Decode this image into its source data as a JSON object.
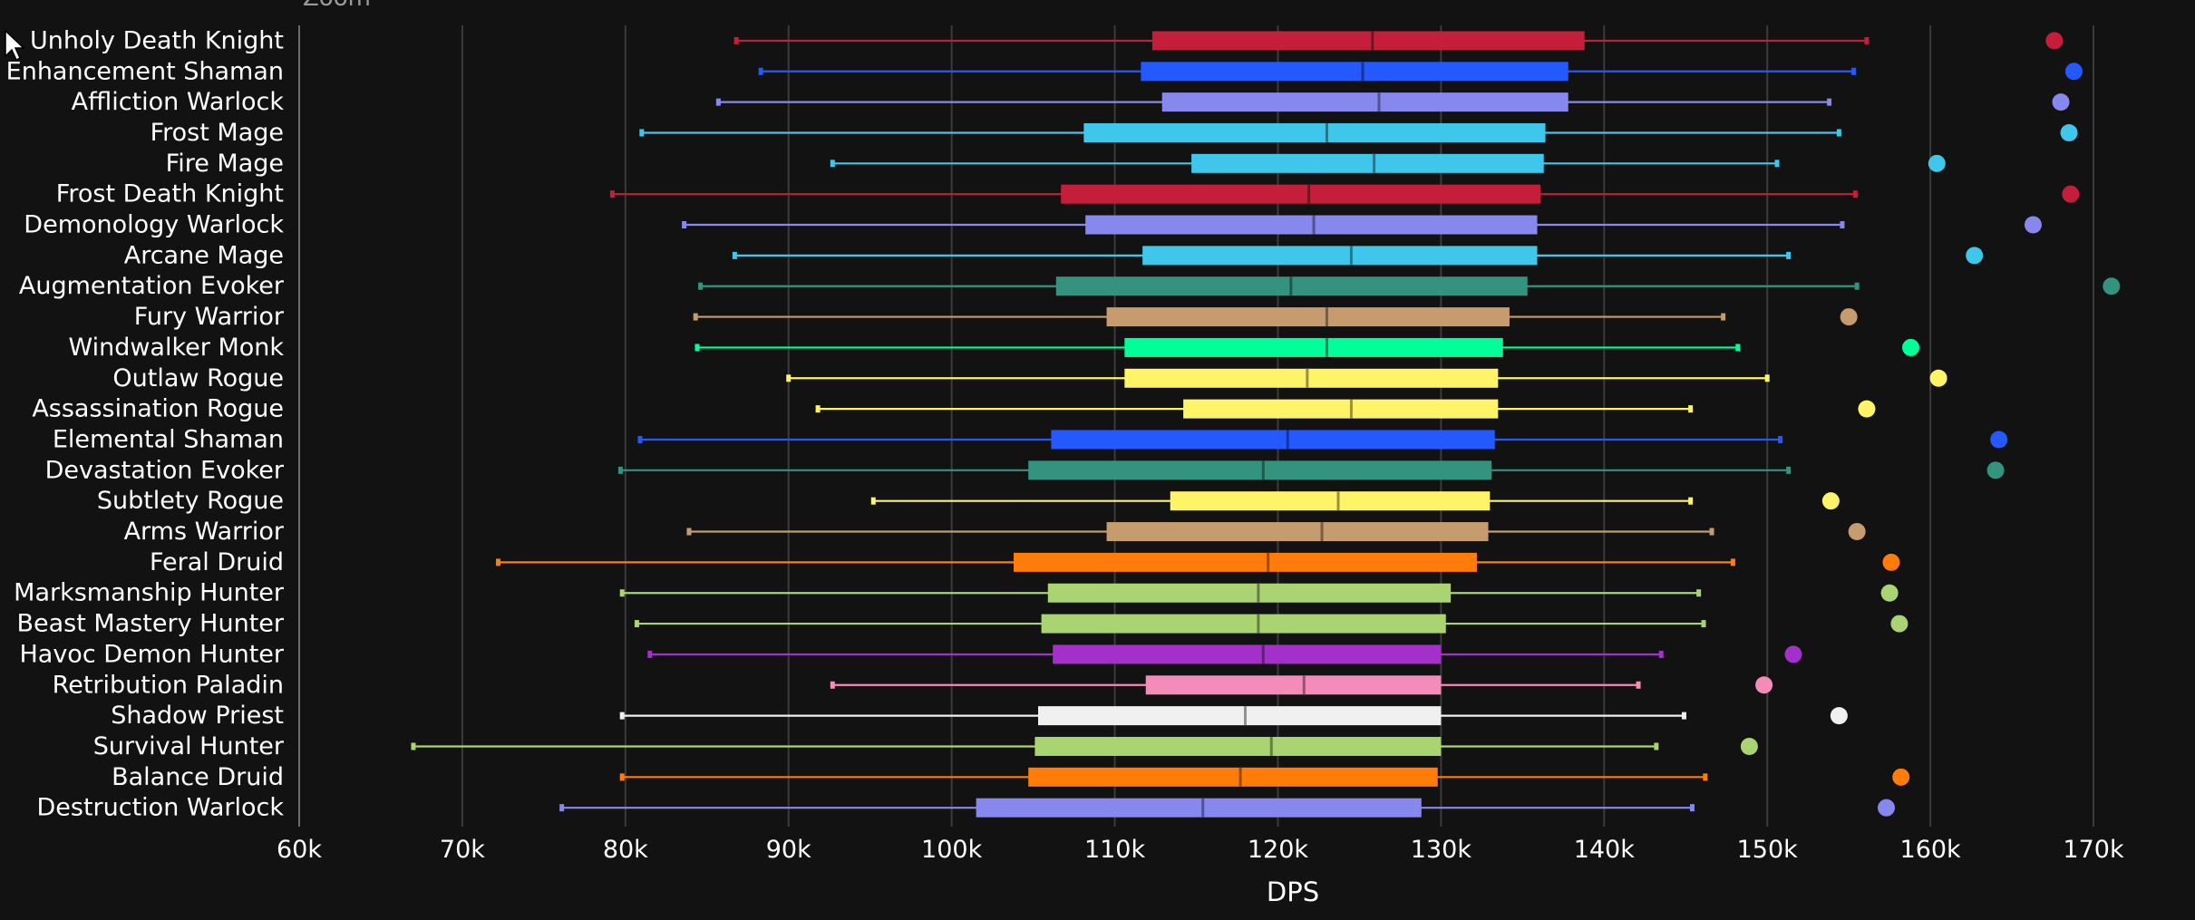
{
  "zoom_label": "Zoom",
  "chart_data": {
    "type": "boxplot",
    "xlabel": "DPS",
    "xlim": [
      60000,
      172000
    ],
    "xticks": [
      60000,
      70000,
      80000,
      90000,
      100000,
      110000,
      120000,
      130000,
      140000,
      150000,
      160000,
      170000
    ],
    "xtick_labels": [
      "60k",
      "70k",
      "80k",
      "90k",
      "100k",
      "110k",
      "120k",
      "130k",
      "140k",
      "150k",
      "160k",
      "170k"
    ],
    "grid": true,
    "series": [
      {
        "name": "Unholy Death Knight",
        "color": "#C41E3A",
        "min": 86800,
        "q1": 112300,
        "median": 125800,
        "q3": 138800,
        "max": 156100,
        "outlier": 167600
      },
      {
        "name": "Enhancement Shaman",
        "color": "#2459FF",
        "min": 88300,
        "q1": 111600,
        "median": 125200,
        "q3": 137800,
        "max": 155300,
        "outlier": 168800
      },
      {
        "name": "Affliction Warlock",
        "color": "#8788EE",
        "min": 85700,
        "q1": 112900,
        "median": 126200,
        "q3": 137800,
        "max": 153800,
        "outlier": 168000
      },
      {
        "name": "Frost Mage",
        "color": "#3FC7EB",
        "min": 81000,
        "q1": 108100,
        "median": 123000,
        "q3": 136400,
        "max": 154400,
        "outlier": 168500
      },
      {
        "name": "Fire Mage",
        "color": "#3FC7EB",
        "min": 92700,
        "q1": 114700,
        "median": 125900,
        "q3": 136300,
        "max": 150600,
        "outlier": 160400
      },
      {
        "name": "Frost Death Knight",
        "color": "#C41E3A",
        "min": 79200,
        "q1": 106700,
        "median": 121900,
        "q3": 136100,
        "max": 155400,
        "outlier": 168600
      },
      {
        "name": "Demonology Warlock",
        "color": "#8788EE",
        "min": 83600,
        "q1": 108200,
        "median": 122200,
        "q3": 135900,
        "max": 154600,
        "outlier": 166300
      },
      {
        "name": "Arcane Mage",
        "color": "#3FC7EB",
        "min": 86700,
        "q1": 111700,
        "median": 124500,
        "q3": 135900,
        "max": 151300,
        "outlier": 162700
      },
      {
        "name": "Augmentation Evoker",
        "color": "#33937F",
        "min": 84600,
        "q1": 106400,
        "median": 120800,
        "q3": 135300,
        "max": 155500,
        "outlier": 171100
      },
      {
        "name": "Fury Warrior",
        "color": "#C69B6D",
        "min": 84300,
        "q1": 109500,
        "median": 123000,
        "q3": 134200,
        "max": 147300,
        "outlier": 155000
      },
      {
        "name": "Windwalker Monk",
        "color": "#00FF98",
        "min": 84400,
        "q1": 110600,
        "median": 123000,
        "q3": 133800,
        "max": 148200,
        "outlier": 158800
      },
      {
        "name": "Outlaw Rogue",
        "color": "#FFF468",
        "min": 90000,
        "q1": 110600,
        "median": 121800,
        "q3": 133500,
        "max": 150000,
        "outlier": 160500
      },
      {
        "name": "Assassination Rogue",
        "color": "#FFF468",
        "min": 91800,
        "q1": 114200,
        "median": 124500,
        "q3": 133500,
        "max": 145300,
        "outlier": 156100
      },
      {
        "name": "Elemental Shaman",
        "color": "#2459FF",
        "min": 80900,
        "q1": 106100,
        "median": 120600,
        "q3": 133300,
        "max": 150800,
        "outlier": 164200
      },
      {
        "name": "Devastation Evoker",
        "color": "#33937F",
        "min": 79700,
        "q1": 104700,
        "median": 119100,
        "q3": 133100,
        "max": 151300,
        "outlier": 164000
      },
      {
        "name": "Subtlety Rogue",
        "color": "#FFF468",
        "min": 95200,
        "q1": 113400,
        "median": 123700,
        "q3": 133000,
        "max": 145300,
        "outlier": 153900
      },
      {
        "name": "Arms Warrior",
        "color": "#C69B6D",
        "min": 83900,
        "q1": 109500,
        "median": 122700,
        "q3": 132900,
        "max": 146600,
        "outlier": 155500
      },
      {
        "name": "Feral Druid",
        "color": "#FF7C0A",
        "min": 72200,
        "q1": 103800,
        "median": 119400,
        "q3": 132200,
        "max": 147900,
        "outlier": 157600
      },
      {
        "name": "Marksmanship Hunter",
        "color": "#AAD372",
        "min": 79800,
        "q1": 105900,
        "median": 118800,
        "q3": 130600,
        "max": 145800,
        "outlier": 157500
      },
      {
        "name": "Beast Mastery Hunter",
        "color": "#AAD372",
        "min": 80700,
        "q1": 105500,
        "median": 118800,
        "q3": 130300,
        "max": 146100,
        "outlier": 158100
      },
      {
        "name": "Havoc Demon Hunter",
        "color": "#A330C9",
        "min": 81500,
        "q1": 106200,
        "median": 119100,
        "q3": 130000,
        "max": 143500,
        "outlier": 151600
      },
      {
        "name": "Retribution Paladin",
        "color": "#F48CBA",
        "min": 92700,
        "q1": 111900,
        "median": 121600,
        "q3": 130000,
        "max": 142100,
        "outlier": 149800
      },
      {
        "name": "Shadow Priest",
        "color": "#F0F0F0",
        "min": 79800,
        "q1": 105300,
        "median": 118000,
        "q3": 130000,
        "max": 144900,
        "outlier": 154400
      },
      {
        "name": "Survival Hunter",
        "color": "#AAD372",
        "min": 67000,
        "q1": 105100,
        "median": 119600,
        "q3": 130000,
        "max": 143200,
        "outlier": 148900
      },
      {
        "name": "Balance Druid",
        "color": "#FF7C0A",
        "min": 79800,
        "q1": 104700,
        "median": 117700,
        "q3": 129800,
        "max": 146200,
        "outlier": 158200
      },
      {
        "name": "Destruction Warlock",
        "color": "#8788EE",
        "min": 76100,
        "q1": 101500,
        "median": 115400,
        "q3": 128800,
        "max": 145400,
        "outlier": 157300
      }
    ]
  }
}
